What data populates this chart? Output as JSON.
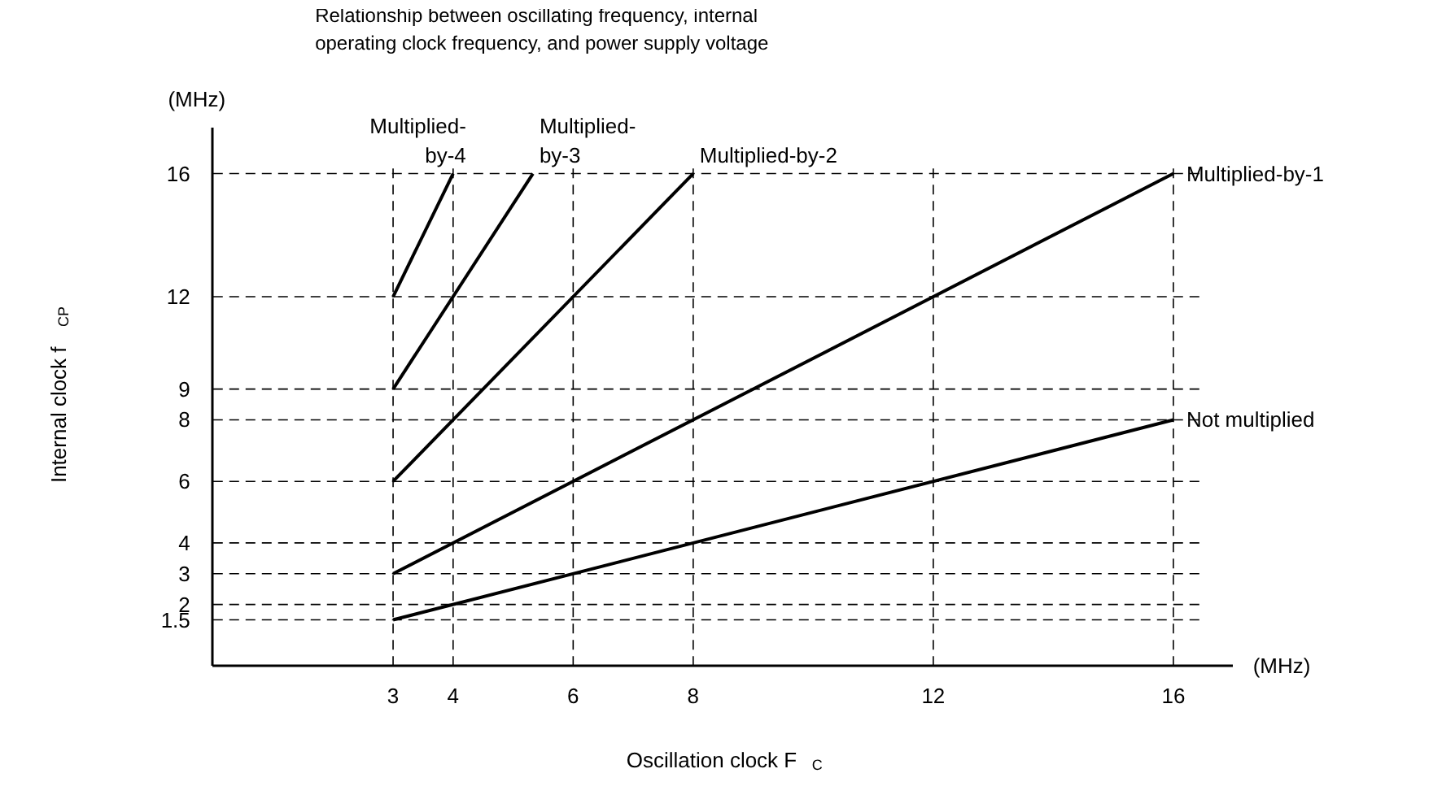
{
  "chart_data": {
    "type": "line",
    "title": "Relationship between oscillating frequency, internal operating clock frequency, and power supply voltage",
    "xlabel": "Oscillation clock F$_{C}$",
    "ylabel": "Internal clock f$_{CP}$",
    "annotations": [
      "(MHz)",
      "(MHz)"
    ],
    "xlim": [
      0,
      17
    ],
    "ylim": [
      0,
      17.5
    ],
    "xticks": [
      3,
      4,
      6,
      8,
      12,
      16
    ],
    "yticks": [
      1.5,
      2,
      3,
      4,
      6,
      8,
      9,
      12,
      16
    ],
    "grid": true,
    "legend": false,
    "marker": "none",
    "line_style": "solid",
    "series": [
      {
        "name": "Multiplied-\nby-4",
        "color": "#000000",
        "x": [
          3,
          4
        ],
        "values": [
          12,
          16
        ]
      },
      {
        "name": "Multiplied-\nby-3",
        "color": "#000000",
        "x": [
          3,
          5.33
        ],
        "values": [
          9,
          16
        ]
      },
      {
        "name": "Multiplied-by-2",
        "color": "#000000",
        "x": [
          3,
          8
        ],
        "values": [
          6,
          16
        ]
      },
      {
        "name": "Multiplied-by-1",
        "color": "#000000",
        "x": [
          3,
          16
        ],
        "values": [
          3,
          16
        ]
      },
      {
        "name": "Not multiplied",
        "color": "#000000",
        "x": [
          3,
          16
        ],
        "values": [
          1.5,
          8
        ]
      }
    ]
  }
}
